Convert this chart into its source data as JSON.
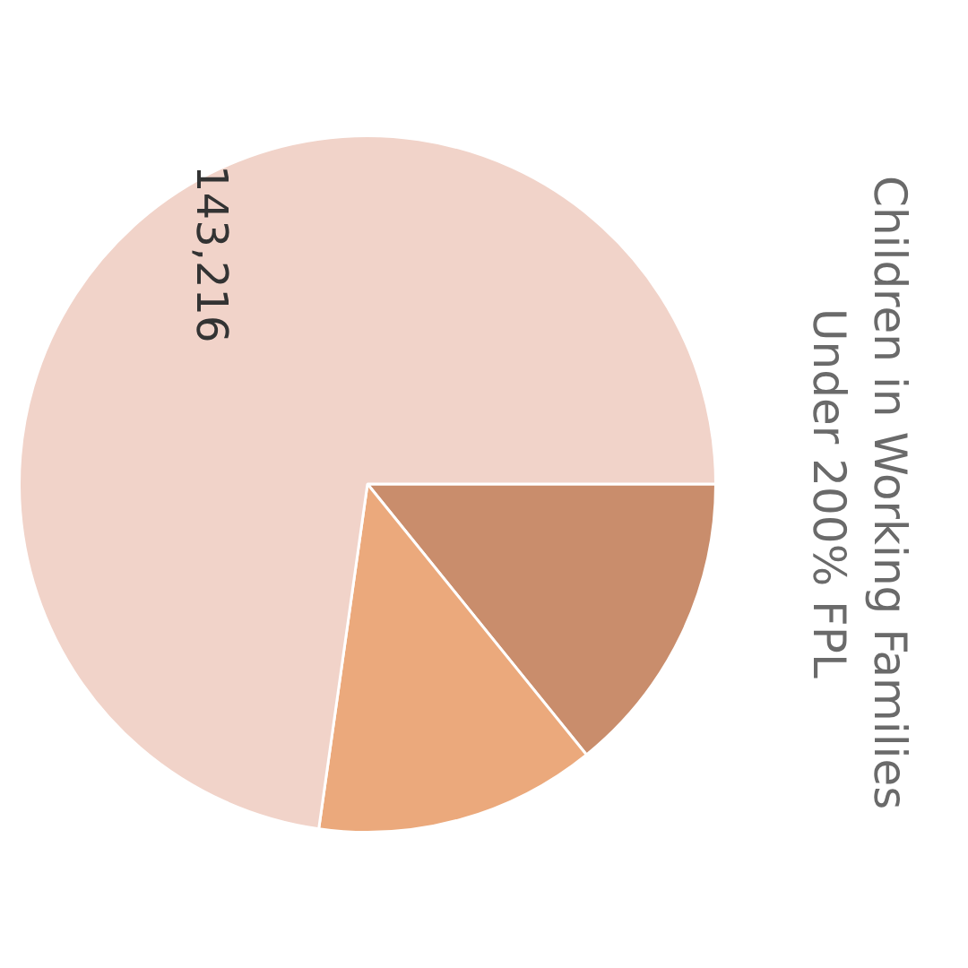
{
  "chart_data": {
    "type": "pie",
    "title": "Children in Working Families\nUnder 200% FPL",
    "categories": [
      null,
      null,
      null
    ],
    "values": [
      27900,
      25700,
      143216
    ],
    "colors": [
      "#c98d6c",
      "#eba97c",
      "#f1d3c9"
    ],
    "value_labels": [
      null,
      null,
      "143,216"
    ],
    "legend": false
  }
}
